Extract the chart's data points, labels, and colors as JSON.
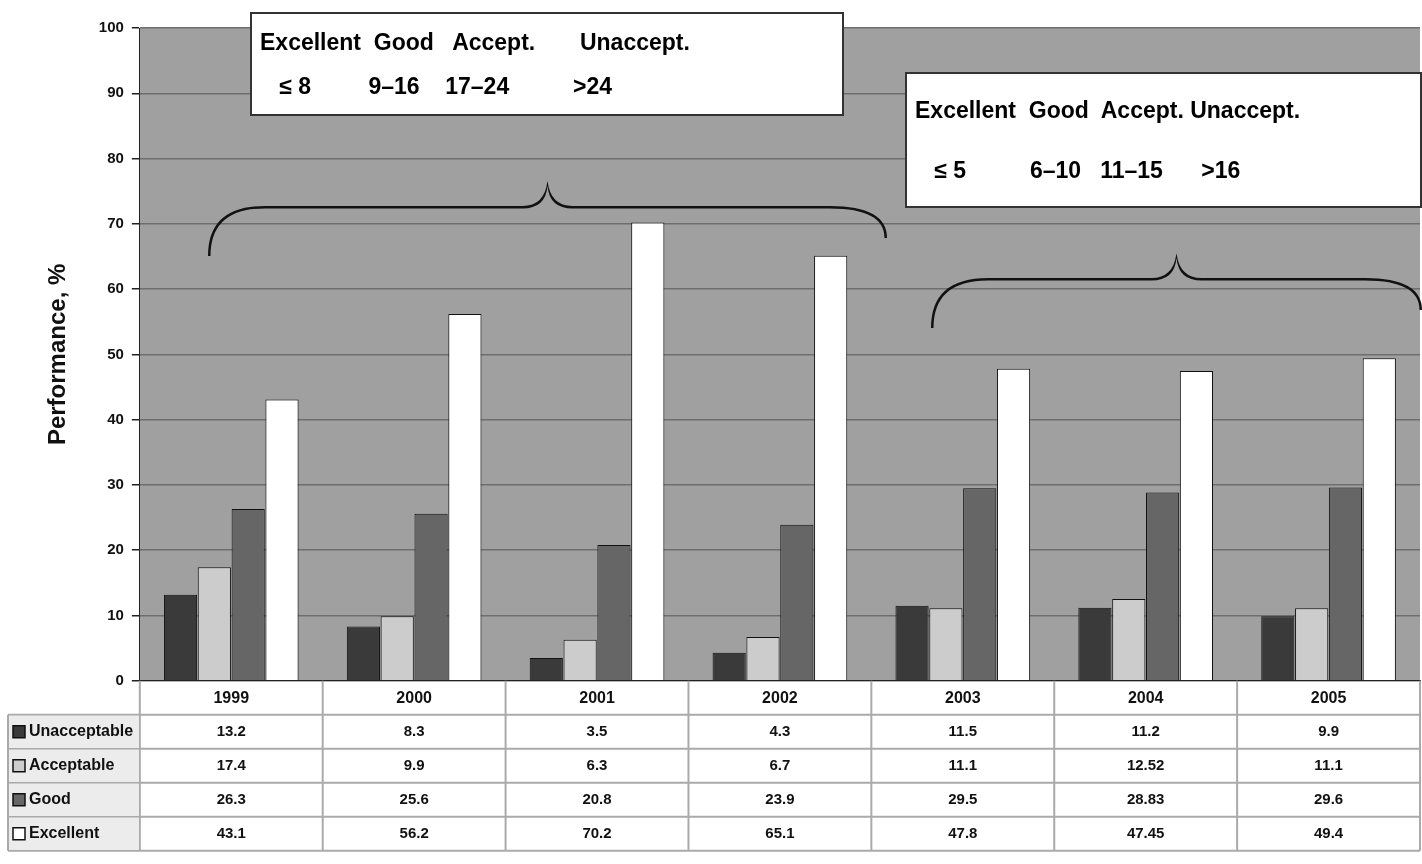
{
  "chart_data": {
    "type": "bar",
    "ylabel": "Performance, %",
    "categories": [
      "1999",
      "2000",
      "2001",
      "2002",
      "2003",
      "2004",
      "2005"
    ],
    "series": [
      {
        "name": "Unacceptable",
        "color": "#3a3a3a",
        "values": [
          13.2,
          8.3,
          3.5,
          4.3,
          11.5,
          11.2,
          9.9
        ]
      },
      {
        "name": "Acceptable",
        "color": "#cccccc",
        "values": [
          17.4,
          9.9,
          6.3,
          6.7,
          11.1,
          12.52,
          11.1
        ]
      },
      {
        "name": "Good",
        "color": "#666666",
        "values": [
          26.3,
          25.6,
          20.8,
          23.9,
          29.5,
          28.83,
          29.6
        ]
      },
      {
        "name": "Excellent",
        "color": "#ffffff",
        "values": [
          43.1,
          56.2,
          70.2,
          65.1,
          47.8,
          47.45,
          49.4
        ]
      }
    ],
    "ylim": [
      0,
      100
    ],
    "yticks": [
      0,
      10,
      20,
      30,
      40,
      50,
      60,
      70,
      80,
      90,
      100
    ],
    "grid": "y",
    "legend": "bottom left",
    "data_labels": true,
    "annotations": [
      "Excellent  Good   Accept.       Unaccept.",
      "   ≤ 8         9–16    17–24          >24",
      "Excellent  Good  Accept. Unaccept.",
      "   ≤ 5          6–10   11–15      >16"
    ]
  }
}
